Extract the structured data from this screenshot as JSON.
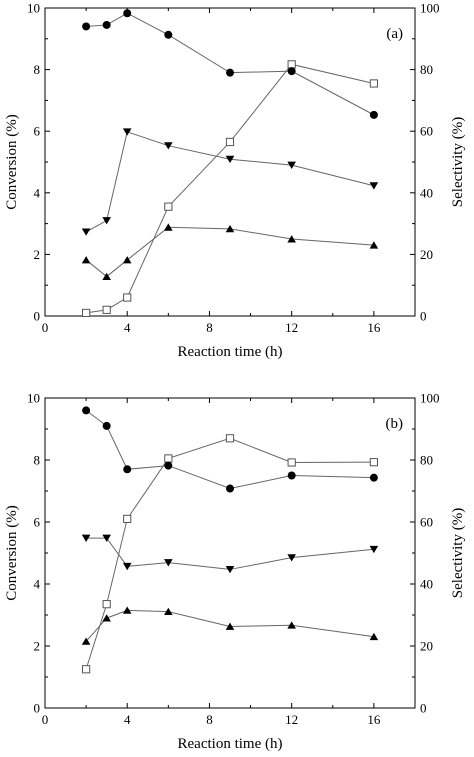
{
  "chart_data": [
    {
      "type": "line",
      "panel_label": "(a)",
      "xlabel": "Reaction time (h)",
      "ylabel_left": "Conversion (%)",
      "ylabel_right": "Selectivity (%)",
      "xlim": [
        0,
        18
      ],
      "ylim_left": [
        0,
        10
      ],
      "ylim_right": [
        0,
        100
      ],
      "x_ticks": [
        0,
        4,
        8,
        12,
        16
      ],
      "y_ticks_left": [
        0,
        2,
        4,
        6,
        8,
        10
      ],
      "y_ticks_right": [
        0,
        20,
        40,
        60,
        80,
        100
      ],
      "grid": false,
      "legend": "none",
      "series": [
        {
          "marker": "square-open",
          "axis": "left",
          "x": [
            2,
            3,
            4,
            6,
            9,
            12,
            16
          ],
          "values": [
            0.1,
            0.2,
            0.6,
            3.55,
            5.65,
            8.17,
            7.55
          ]
        },
        {
          "marker": "circle-filled",
          "axis": "right",
          "x": [
            2,
            3,
            4,
            6,
            9,
            12,
            16
          ],
          "values": [
            94,
            94.5,
            98.3,
            91.3,
            79,
            79.5,
            65.3
          ]
        },
        {
          "marker": "triangle-down-filled",
          "axis": "right",
          "x": [
            2,
            3,
            4,
            6,
            9,
            12,
            16
          ],
          "values": [
            27.3,
            31,
            59.8,
            55.3,
            50.9,
            49,
            42.3
          ]
        },
        {
          "marker": "triangle-up-filled",
          "axis": "right",
          "x": [
            2,
            3,
            4,
            6,
            9,
            12,
            16
          ],
          "values": [
            18.2,
            12.8,
            18.2,
            28.8,
            28.3,
            25,
            23
          ]
        }
      ]
    },
    {
      "type": "line",
      "panel_label": "(b)",
      "xlabel": "Reaction time (h)",
      "ylabel_left": "Conversion (%)",
      "ylabel_right": "Selectivity (%)",
      "xlim": [
        0,
        18
      ],
      "ylim_left": [
        0,
        10
      ],
      "ylim_right": [
        0,
        100
      ],
      "x_ticks": [
        0,
        4,
        8,
        12,
        16
      ],
      "y_ticks_left": [
        0,
        2,
        4,
        6,
        8,
        10
      ],
      "y_ticks_right": [
        0,
        20,
        40,
        60,
        80,
        100
      ],
      "grid": false,
      "legend": "none",
      "series": [
        {
          "marker": "square-open",
          "axis": "left",
          "x": [
            2,
            3,
            4,
            6,
            9,
            12,
            16
          ],
          "values": [
            1.25,
            3.35,
            6.1,
            8.05,
            8.7,
            7.92,
            7.93
          ]
        },
        {
          "marker": "circle-filled",
          "axis": "right",
          "x": [
            2,
            3,
            4,
            6,
            9,
            12,
            16
          ],
          "values": [
            96,
            91,
            77,
            78.2,
            70.8,
            75,
            74.3
          ]
        },
        {
          "marker": "triangle-down-filled",
          "axis": "right",
          "x": [
            2,
            3,
            4,
            6,
            9,
            12,
            16
          ],
          "values": [
            54.8,
            54.8,
            45.7,
            46.9,
            44.7,
            48.5,
            51.2
          ]
        },
        {
          "marker": "triangle-up-filled",
          "axis": "right",
          "x": [
            2,
            3,
            4,
            6,
            9,
            12,
            16
          ],
          "values": [
            21.5,
            29,
            31.5,
            31.1,
            26.3,
            26.7,
            23
          ]
        }
      ]
    }
  ]
}
